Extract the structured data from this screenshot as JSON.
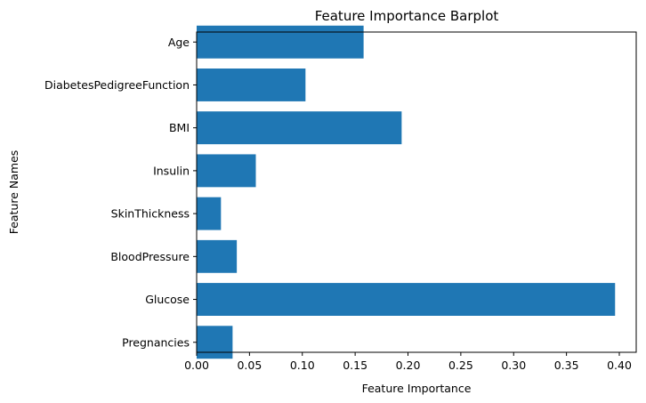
{
  "chart_data": {
    "type": "bar",
    "orientation": "horizontal",
    "title": "Feature Importance Barplot",
    "xlabel": "Feature Importance",
    "ylabel": "Feature Names",
    "categories": [
      "Pregnancies",
      "Glucose",
      "BloodPressure",
      "SkinThickness",
      "Insulin",
      "BMI",
      "DiabetesPedigreeFunction",
      "Age"
    ],
    "values": [
      0.034,
      0.396,
      0.038,
      0.023,
      0.056,
      0.194,
      0.103,
      0.158
    ],
    "xlim": [
      0,
      0.416
    ],
    "xticks": [
      "0.00",
      "0.05",
      "0.10",
      "0.15",
      "0.20",
      "0.25",
      "0.30",
      "0.35",
      "0.40"
    ],
    "grid": false,
    "bar_color": "#1f77b4"
  }
}
